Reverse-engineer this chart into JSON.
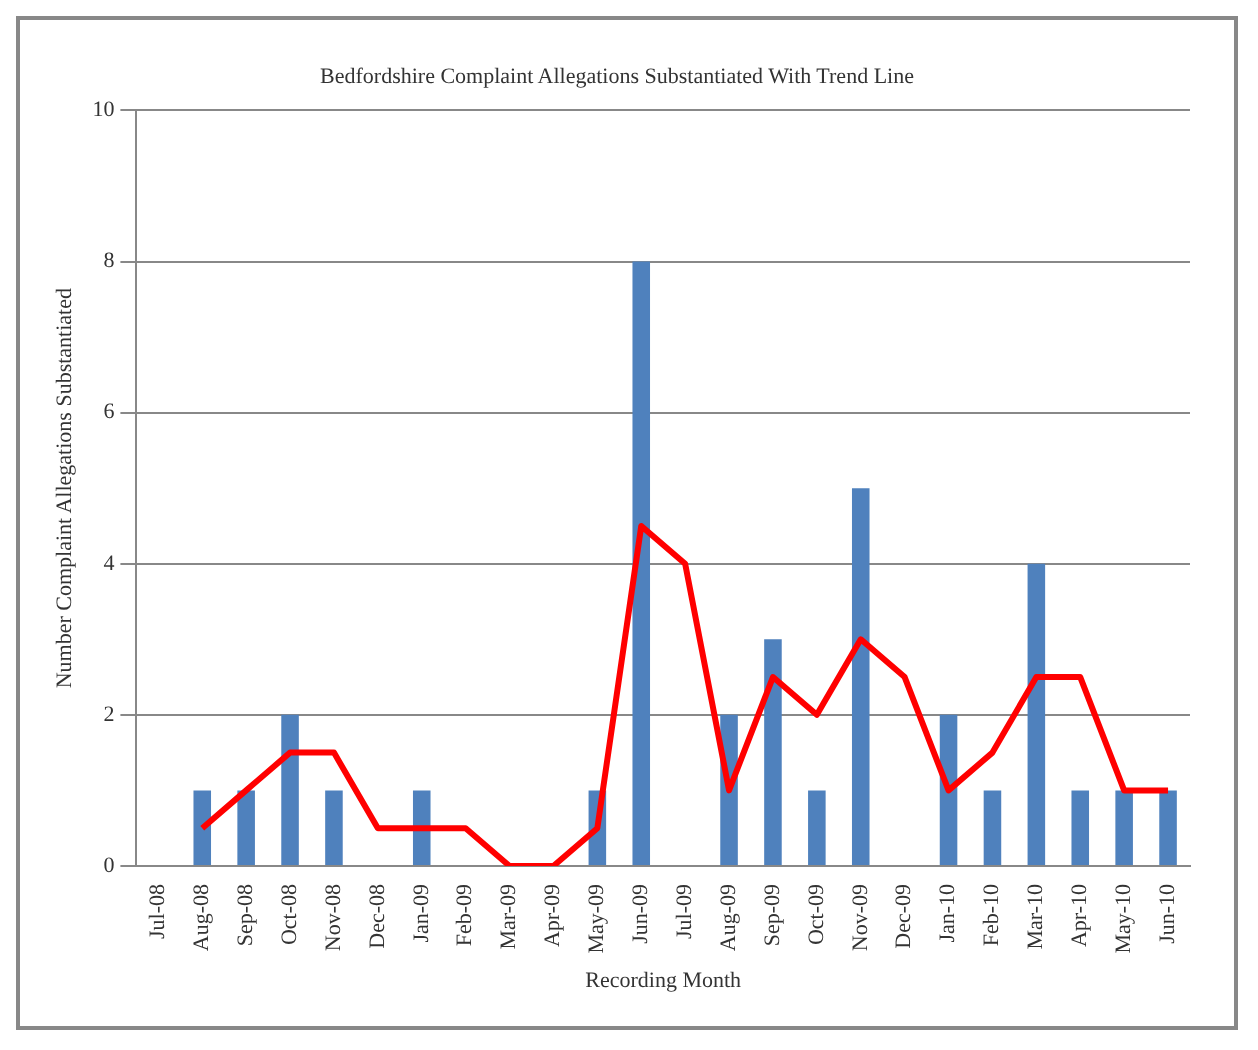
{
  "chart_data": {
    "type": "bar",
    "title": "Bedfordshire Complaint Allegations Substantiated With Trend Line",
    "xlabel": "Recording Month",
    "ylabel": "Number Complaint Allegations Substantiated",
    "categories": [
      "Jul-08",
      "Aug-08",
      "Sep-08",
      "Oct-08",
      "Nov-08",
      "Dec-08",
      "Jan-09",
      "Feb-09",
      "Mar-09",
      "Apr-09",
      "May-09",
      "Jun-09",
      "Jul-09",
      "Aug-09",
      "Sep-09",
      "Oct-09",
      "Nov-09",
      "Dec-09",
      "Jan-10",
      "Feb-10",
      "Mar-10",
      "Apr-10",
      "May-10",
      "Jun-10"
    ],
    "series": [
      {
        "color": "#4f81bd",
        "values": [
          0,
          1,
          1,
          2,
          1,
          0,
          1,
          0,
          0,
          0,
          1,
          8,
          0,
          2,
          3,
          1,
          5,
          0,
          2,
          1,
          4,
          1,
          1,
          1
        ]
      },
      {
        "type": "line",
        "color": "#ff0000",
        "values": [
          null,
          0.5,
          1,
          1.5,
          1.5,
          0.5,
          0.5,
          0.5,
          0,
          0,
          0.5,
          4.5,
          4,
          1,
          2.5,
          2,
          3,
          2.5,
          1,
          1.5,
          2.5,
          2.5,
          1,
          1
        ]
      }
    ],
    "ylim": [
      0,
      10
    ],
    "yticks": [
      0,
      2,
      4,
      6,
      8,
      10
    ],
    "grid": "y",
    "legend": false,
    "marker": "none"
  }
}
